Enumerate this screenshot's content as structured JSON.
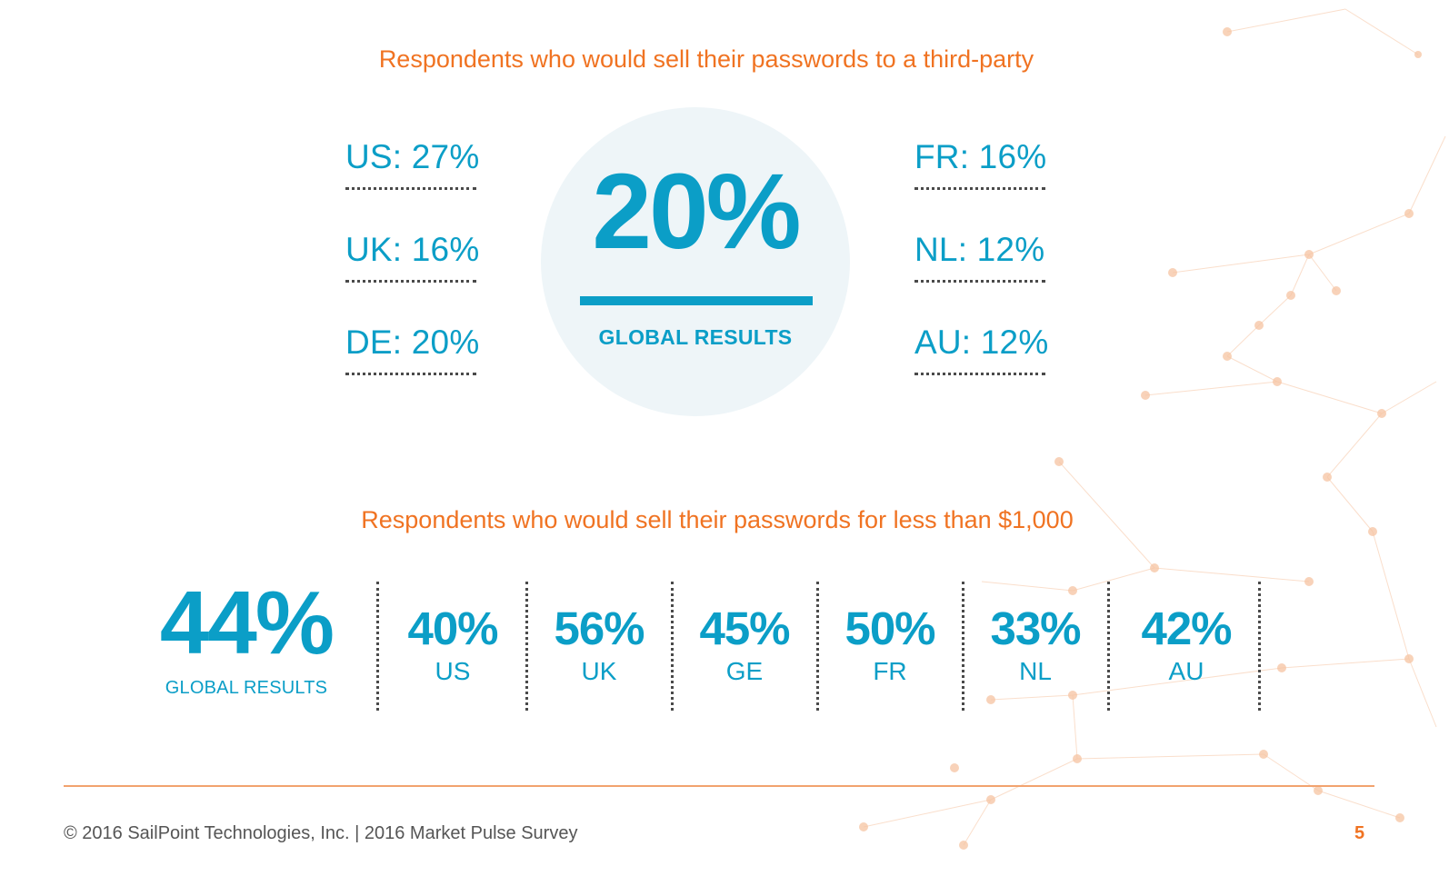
{
  "top_section": {
    "title": "Respondents who would sell their passwords to a third-party",
    "global": {
      "value": "20%",
      "label": "GLOBAL RESULTS"
    },
    "left_countries": [
      {
        "text": "US: 27%"
      },
      {
        "text": "UK: 16%"
      },
      {
        "text": "DE: 20%"
      }
    ],
    "right_countries": [
      {
        "text": "FR: 16%"
      },
      {
        "text": "NL: 12%"
      },
      {
        "text": "AU: 12%"
      }
    ]
  },
  "bottom_section": {
    "title": "Respondents who would sell their passwords for less than $1,000",
    "global": {
      "value": "44%",
      "label": "GLOBAL RESULTS"
    },
    "countries": [
      {
        "value": "40%",
        "label": "US"
      },
      {
        "value": "56%",
        "label": "UK"
      },
      {
        "value": "45%",
        "label": "GE"
      },
      {
        "value": "50%",
        "label": "FR"
      },
      {
        "value": "33%",
        "label": "NL"
      },
      {
        "value": "42%",
        "label": "AU"
      }
    ]
  },
  "footer": {
    "copyright": "© 2016 SailPoint Technologies, Inc. | 2016 Market Pulse Survey",
    "page_number": "5"
  },
  "colors": {
    "accent_orange": "#f07322",
    "stat_blue": "#0b9ec7",
    "circle_fill": "#eef5f8"
  }
}
